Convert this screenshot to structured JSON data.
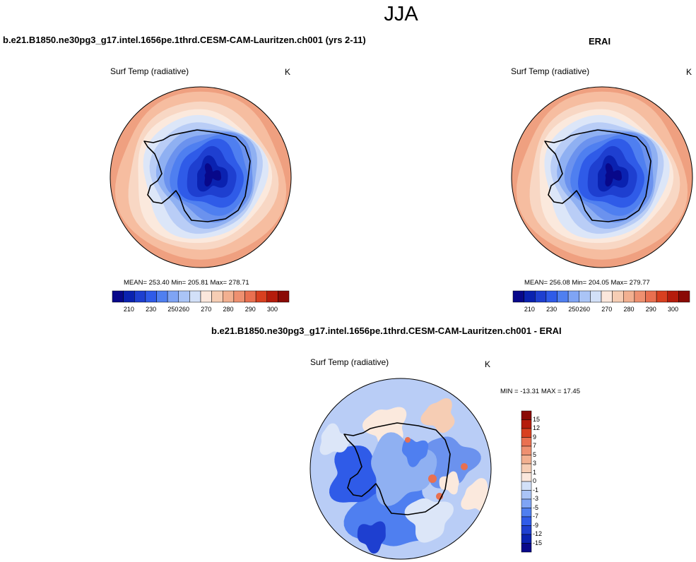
{
  "season": "JJA",
  "panels": {
    "model": {
      "case_title": "b.e21.B1850.ne30pg3_g17.intel.1656pe.1thrd.CESM-CAM-Lauritzen.ch001 (yrs 2-11)",
      "plot_title": "Surf Temp (radiative)",
      "units": "K",
      "stats": "MEAN= 253.40  Min= 205.81  Max= 278.71"
    },
    "obs": {
      "case_title": "ERAI",
      "plot_title": "Surf Temp (radiative)",
      "units": "K",
      "stats": "MEAN= 256.08  Min= 204.05  Max= 279.77"
    },
    "diff": {
      "case_title": "b.e21.B1850.ne30pg3_g17.intel.1656pe.1thrd.CESM-CAM-Lauritzen.ch001 - ERAI",
      "plot_title": "Surf Temp (radiative)",
      "units": "K",
      "stats": "MIN = -13.31 MAX =  17.45"
    }
  },
  "colors": {
    "abs_levels": [
      "#08088a",
      "#0a22b0",
      "#1e3fd0",
      "#2f5be8",
      "#4f7ff0",
      "#7fa4f4",
      "#aac4f6",
      "#d2e0f8",
      "#fbe7dc",
      "#f6cdb4",
      "#f2b090",
      "#ee9070",
      "#e97050",
      "#d84020",
      "#b51c0c",
      "#8a0a05"
    ],
    "diff_levels": [
      "#08088a",
      "#0a22b0",
      "#1e3fd0",
      "#2f5be8",
      "#4f7ff0",
      "#7fa4f4",
      "#aac4f6",
      "#d2e0f8",
      "#fbe7dc",
      "#f6cdb4",
      "#f2b090",
      "#ee9070",
      "#e97050",
      "#d84020",
      "#b51c0c",
      "#8a0a05"
    ]
  },
  "chart_data": [
    {
      "type": "heatmap",
      "title": "Surf Temp (radiative)",
      "units": "K",
      "projection": "south polar stereographic",
      "colorbar_ticks": [
        210,
        230,
        250,
        260,
        270,
        280,
        290,
        300
      ],
      "mean": 253.4,
      "min": 205.81,
      "max": 278.71
    },
    {
      "type": "heatmap",
      "title": "Surf Temp (radiative)",
      "units": "K",
      "projection": "south polar stereographic",
      "colorbar_ticks": [
        210,
        230,
        250,
        260,
        270,
        280,
        290,
        300
      ],
      "mean": 256.08,
      "min": 204.05,
      "max": 279.77
    },
    {
      "type": "heatmap",
      "title": "Surf Temp (radiative)",
      "units": "K",
      "projection": "south polar stereographic",
      "colorbar_ticks": [
        15,
        12,
        9,
        7,
        5,
        3,
        1,
        0,
        -1,
        -3,
        -5,
        -7,
        -9,
        -12,
        -15
      ],
      "min": -13.31,
      "max": 17.45
    }
  ]
}
